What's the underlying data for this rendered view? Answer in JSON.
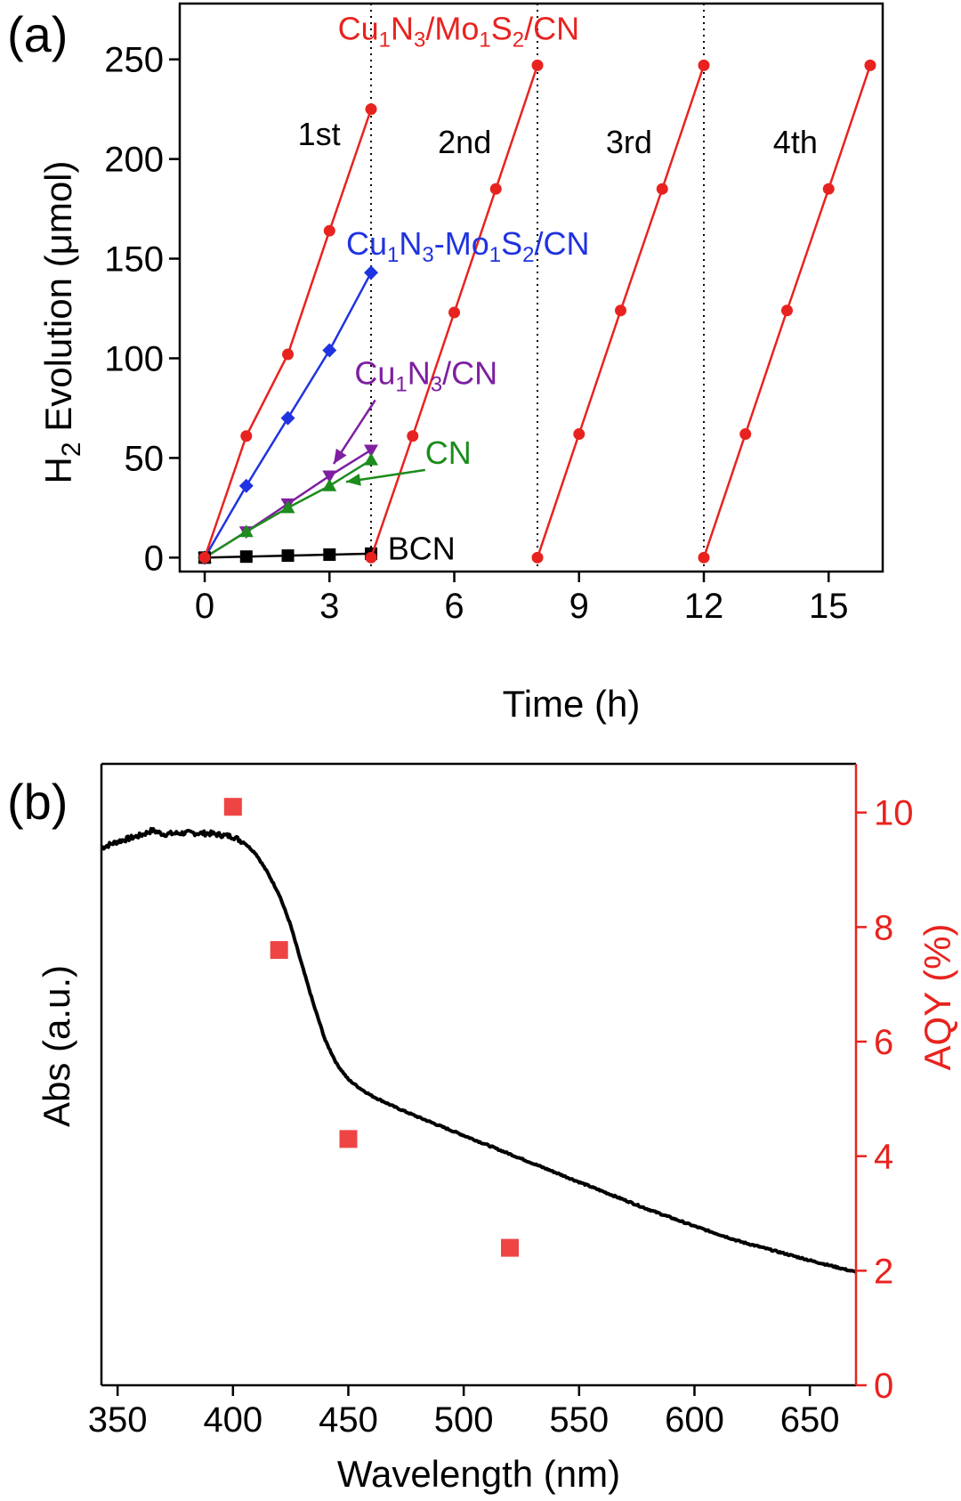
{
  "panels": [
    {
      "label": "(a)"
    },
    {
      "label": "(b)"
    }
  ],
  "colors": {
    "red": "#e8231f",
    "blue": "#1f33e0",
    "purple": "#7d1fa0",
    "green": "#1c8c1c",
    "black": "#000000",
    "aqy_marker": "#ef4444"
  },
  "chart_data": [
    {
      "type": "line",
      "panel": "(a)",
      "xlabel": "Time (h)",
      "ylabel": "H2 Evolution (μmol)",
      "ylabel_parts": {
        "pre": "H",
        "sub": "2",
        "post": " Evolution (μmol)"
      },
      "xlim": [
        -0.6,
        16.3
      ],
      "ylim": [
        -7,
        278
      ],
      "xticks": [
        0,
        3,
        6,
        9,
        12,
        15
      ],
      "yticks": [
        0,
        50,
        100,
        150,
        200,
        250
      ],
      "cycle_boundaries": [
        4,
        8,
        12
      ],
      "cycle_labels": [
        {
          "text": "1st",
          "x": 2.75,
          "y": 207
        },
        {
          "text": "2nd",
          "x": 6.25,
          "y": 203
        },
        {
          "text": "3rd",
          "x": 10.2,
          "y": 203
        },
        {
          "text": "4th",
          "x": 14.2,
          "y": 203
        }
      ],
      "series": [
        {
          "name": "Cu1N3/Mo1S2/CN",
          "label": {
            "parts": [
              [
                "Cu",
                ""
              ],
              [
                "1",
                "sub"
              ],
              [
                "N",
                ""
              ],
              [
                "3",
                "sub"
              ],
              [
                "/Mo",
                ""
              ],
              [
                "1",
                "sub"
              ],
              [
                "S",
                ""
              ],
              [
                "2",
                "sub"
              ],
              [
                "/CN",
                ""
              ]
            ],
            "x": 3.2,
            "y": 260,
            "anchor": "start"
          },
          "color": "red",
          "marker": "circle",
          "segments": [
            [
              [
                0,
                0
              ],
              [
                1,
                61
              ],
              [
                2,
                102
              ],
              [
                3,
                164
              ],
              [
                4,
                225
              ]
            ],
            [
              [
                4,
                0
              ],
              [
                5,
                61
              ],
              [
                6,
                123
              ],
              [
                7,
                185
              ],
              [
                8,
                247
              ]
            ],
            [
              [
                8,
                0
              ],
              [
                9,
                62
              ],
              [
                10,
                124
              ],
              [
                11,
                185
              ],
              [
                12,
                247
              ]
            ],
            [
              [
                12,
                0
              ],
              [
                13,
                62
              ],
              [
                14,
                124
              ],
              [
                15,
                185
              ],
              [
                16,
                247
              ]
            ]
          ]
        },
        {
          "name": "Cu1N3-Mo1S2/CN",
          "label": {
            "parts": [
              [
                "Cu",
                ""
              ],
              [
                "1",
                "sub"
              ],
              [
                "N",
                ""
              ],
              [
                "3",
                "sub"
              ],
              [
                "-Mo",
                ""
              ],
              [
                "1",
                "sub"
              ],
              [
                "S",
                ""
              ],
              [
                "2",
                "sub"
              ],
              [
                "/CN",
                ""
              ]
            ],
            "x": 3.4,
            "y": 152,
            "anchor": "start"
          },
          "color": "blue",
          "marker": "diamond",
          "segments": [
            [
              [
                0,
                0
              ],
              [
                1,
                36
              ],
              [
                2,
                70
              ],
              [
                3,
                104
              ],
              [
                4,
                143
              ]
            ]
          ]
        },
        {
          "name": "Cu1N3/CN",
          "label": {
            "parts": [
              [
                "Cu",
                ""
              ],
              [
                "1",
                "sub"
              ],
              [
                "N",
                ""
              ],
              [
                "3",
                "sub"
              ],
              [
                "/CN",
                ""
              ]
            ],
            "x": 3.6,
            "y": 87,
            "anchor": "start"
          },
          "color": "purple",
          "marker": "triangle-down",
          "segments": [
            [
              [
                0,
                0
              ],
              [
                1,
                13
              ],
              [
                2,
                27
              ],
              [
                3,
                41
              ],
              [
                4,
                54
              ]
            ]
          ]
        },
        {
          "name": "CN",
          "label": {
            "parts": [
              [
                "CN",
                ""
              ]
            ],
            "x": 5.3,
            "y": 47,
            "anchor": "start"
          },
          "color": "green",
          "marker": "triangle-up",
          "segments": [
            [
              [
                0,
                0
              ],
              [
                1,
                13
              ],
              [
                2,
                25
              ],
              [
                3,
                36
              ],
              [
                4,
                49
              ]
            ]
          ]
        },
        {
          "name": "BCN",
          "label": {
            "parts": [
              [
                "BCN",
                ""
              ]
            ],
            "x": 4.4,
            "y": -1,
            "anchor": "start"
          },
          "color": "black",
          "marker": "square",
          "segments": [
            [
              [
                0,
                0
              ],
              [
                1,
                0.5
              ],
              [
                2,
                1
              ],
              [
                3,
                1.5
              ],
              [
                4,
                2
              ]
            ]
          ]
        }
      ],
      "arrows": [
        {
          "color": "purple",
          "from": [
            4.1,
            79
          ],
          "to": [
            3.1,
            47
          ]
        },
        {
          "color": "green",
          "from": [
            5.3,
            44
          ],
          "to": [
            3.4,
            38
          ]
        }
      ]
    },
    {
      "type": "line+scatter",
      "panel": "(b)",
      "xlabel": "Wavelength (nm)",
      "ylabel_left": "Abs (a.u.)",
      "ylabel_right": "AQY (%)",
      "xlim": [
        343,
        670
      ],
      "xticks": [
        350,
        400,
        450,
        500,
        550,
        600,
        650
      ],
      "ylim_abs": [
        0,
        1
      ],
      "ylim_right": [
        0,
        10.85
      ],
      "yticks_right": [
        0,
        2,
        4,
        6,
        8,
        10
      ],
      "absorbance_curve": {
        "color": "black",
        "x": [
          343,
          350,
          360,
          365,
          370,
          380,
          390,
          400,
          405,
          410,
          415,
          420,
          425,
          430,
          435,
          440,
          445,
          450,
          455,
          460,
          470,
          480,
          500,
          520,
          550,
          580,
          600,
          620,
          650,
          670
        ],
        "y": [
          0.865,
          0.875,
          0.885,
          0.893,
          0.887,
          0.889,
          0.888,
          0.883,
          0.873,
          0.855,
          0.825,
          0.79,
          0.74,
          0.675,
          0.612,
          0.555,
          0.517,
          0.492,
          0.478,
          0.466,
          0.448,
          0.432,
          0.402,
          0.372,
          0.327,
          0.283,
          0.256,
          0.231,
          0.201,
          0.182
        ]
      },
      "aqy_points": {
        "color": "aqy_marker",
        "marker": "square",
        "x": [
          400,
          420,
          450,
          520
        ],
        "y": [
          10.1,
          7.6,
          4.3,
          2.4
        ]
      }
    }
  ]
}
